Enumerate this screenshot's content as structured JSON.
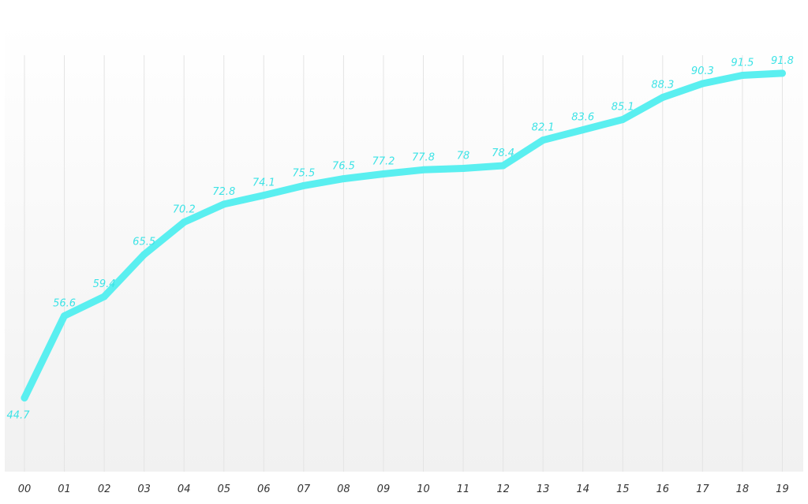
{
  "chart_data": {
    "type": "line",
    "title": "",
    "xlabel": "",
    "ylabel": "",
    "categories": [
      "00",
      "01",
      "02",
      "03",
      "04",
      "05",
      "06",
      "07",
      "08",
      "09",
      "10",
      "11",
      "12",
      "13",
      "14",
      "15",
      "16",
      "17",
      "18",
      "19"
    ],
    "series": [
      {
        "values": [
          44.7,
          56.6,
          59.4,
          65.5,
          70.2,
          72.8,
          74.1,
          75.5,
          76.5,
          77.2,
          77.8,
          78,
          78.4,
          82.1,
          83.6,
          85.1,
          88.3,
          90.3,
          91.5,
          91.8
        ],
        "labels": [
          "44.7",
          "56.6",
          "59.4",
          "65.5",
          "70.2",
          "72.8",
          "74.1",
          "75.5",
          "76.5",
          "77.2",
          "77.8",
          "78",
          "78.4",
          "82.1",
          "83.6",
          "85.1",
          "88.3",
          "90.3",
          "91.5",
          "91.8"
        ]
      }
    ],
    "ylim": [
      34,
      99
    ],
    "grid": "vertical",
    "legend": "none",
    "colors": {
      "line": "#5AEFF0",
      "label": "#3DE3E6",
      "grid": "#E4E4E4",
      "background_top": "#FFFFFF",
      "background_bottom": "#F1F1F1"
    }
  }
}
